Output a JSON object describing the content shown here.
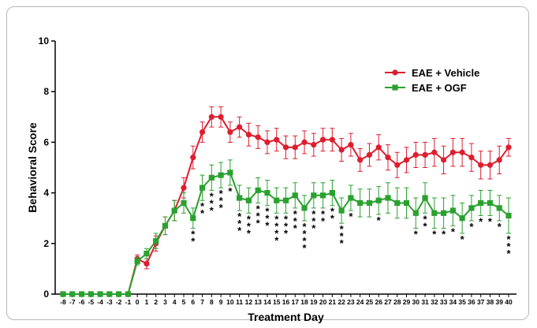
{
  "chart_data": {
    "type": "line",
    "title": "",
    "xlabel": "Treatment Day",
    "ylabel": "Behavioral Score",
    "ylim": [
      0,
      10
    ],
    "yticks": [
      0,
      2,
      4,
      6,
      8,
      10
    ],
    "x": [
      -8,
      -7,
      -6,
      -5,
      -4,
      -3,
      -2,
      -1,
      0,
      1,
      2,
      3,
      4,
      5,
      6,
      7,
      8,
      9,
      10,
      11,
      12,
      13,
      14,
      15,
      16,
      17,
      18,
      19,
      20,
      21,
      22,
      23,
      24,
      25,
      26,
      27,
      28,
      29,
      30,
      31,
      32,
      33,
      34,
      35,
      36,
      37,
      38,
      39,
      40
    ],
    "legend_position": "top-right",
    "grid": false,
    "series": [
      {
        "name": "EAE + Vehicle",
        "color": "#dd1e2f",
        "marker": "circle",
        "values": [
          0,
          0,
          0,
          0,
          0,
          0,
          0,
          0,
          1.4,
          1.2,
          2.0,
          2.7,
          3.3,
          4.2,
          5.4,
          6.4,
          7.0,
          7.0,
          6.4,
          6.6,
          6.3,
          6.2,
          6.0,
          6.1,
          5.8,
          5.8,
          6.0,
          5.9,
          6.1,
          6.1,
          5.7,
          5.9,
          5.3,
          5.5,
          5.8,
          5.4,
          5.1,
          5.3,
          5.5,
          5.5,
          5.6,
          5.3,
          5.6,
          5.6,
          5.4,
          5.1,
          5.1,
          5.3,
          5.8
        ],
        "errors": [
          0,
          0,
          0,
          0,
          0,
          0,
          0,
          0,
          0.15,
          0.2,
          0.3,
          0.35,
          0.4,
          0.4,
          0.45,
          0.4,
          0.4,
          0.4,
          0.4,
          0.4,
          0.45,
          0.45,
          0.45,
          0.45,
          0.45,
          0.45,
          0.45,
          0.45,
          0.45,
          0.45,
          0.45,
          0.45,
          0.45,
          0.45,
          0.5,
          0.5,
          0.5,
          0.5,
          0.5,
          0.5,
          0.55,
          0.55,
          0.55,
          0.55,
          0.55,
          0.55,
          0.55,
          0.55,
          0.35
        ]
      },
      {
        "name": "EAE + OGF",
        "color": "#2aa12f",
        "marker": "square",
        "values": [
          0,
          0,
          0,
          0,
          0,
          0,
          0,
          0,
          1.3,
          1.6,
          2.1,
          2.7,
          3.3,
          3.6,
          3.0,
          4.2,
          4.6,
          4.7,
          4.8,
          3.8,
          3.7,
          4.1,
          4.0,
          3.7,
          3.7,
          3.9,
          3.4,
          3.9,
          3.9,
          4.0,
          3.3,
          3.8,
          3.6,
          3.6,
          3.7,
          3.8,
          3.6,
          3.6,
          3.2,
          3.8,
          3.2,
          3.2,
          3.3,
          3.0,
          3.4,
          3.6,
          3.6,
          3.4,
          3.1
        ],
        "errors": [
          0,
          0,
          0,
          0,
          0,
          0,
          0,
          0,
          0.15,
          0.2,
          0.3,
          0.35,
          0.4,
          0.4,
          0.4,
          0.5,
          0.5,
          0.5,
          0.5,
          0.5,
          0.5,
          0.5,
          0.5,
          0.5,
          0.5,
          0.5,
          0.5,
          0.5,
          0.5,
          0.5,
          0.5,
          0.5,
          0.55,
          0.55,
          0.55,
          0.6,
          0.6,
          0.6,
          0.6,
          0.6,
          0.6,
          0.6,
          0.6,
          0.6,
          0.5,
          0.5,
          0.5,
          0.5,
          0.7
        ]
      }
    ],
    "annotations": [
      {
        "x": 6,
        "text": "*",
        "count": 2
      },
      {
        "x": 7,
        "text": "*",
        "count": 2
      },
      {
        "x": 8,
        "text": "*",
        "count": 3
      },
      {
        "x": 9,
        "text": "*",
        "count": 3
      },
      {
        "x": 10,
        "text": "*",
        "count": 1
      },
      {
        "x": 11,
        "text": "*",
        "count": 3
      },
      {
        "x": 12,
        "text": "*",
        "count": 3
      },
      {
        "x": 13,
        "text": "*",
        "count": 3
      },
      {
        "x": 14,
        "text": "*",
        "count": 3
      },
      {
        "x": 15,
        "text": "*",
        "count": 4
      },
      {
        "x": 16,
        "text": "*",
        "count": 3
      },
      {
        "x": 17,
        "text": "*",
        "count": 3
      },
      {
        "x": 18,
        "text": "*",
        "count": 4
      },
      {
        "x": 19,
        "text": "*",
        "count": 3
      },
      {
        "x": 20,
        "text": "*",
        "count": 2
      },
      {
        "x": 21,
        "text": "*",
        "count": 2
      },
      {
        "x": 22,
        "text": "*",
        "count": 3
      },
      {
        "x": 23,
        "text": "*",
        "count": 1
      },
      {
        "x": 26,
        "text": "*",
        "count": 1
      },
      {
        "x": 30,
        "text": "*",
        "count": 1
      },
      {
        "x": 31,
        "text": "*",
        "count": 2
      },
      {
        "x": 32,
        "text": "*",
        "count": 1
      },
      {
        "x": 33,
        "text": "*",
        "count": 1
      },
      {
        "x": 34,
        "text": "*",
        "count": 1
      },
      {
        "x": 35,
        "text": "*",
        "count": 1
      },
      {
        "x": 36,
        "text": "*",
        "count": 1
      },
      {
        "x": 37,
        "text": "*",
        "count": 1
      },
      {
        "x": 38,
        "text": "*",
        "count": 1
      },
      {
        "x": 39,
        "text": "*",
        "count": 1
      },
      {
        "x": 40,
        "text": "*",
        "count": 3
      }
    ]
  }
}
